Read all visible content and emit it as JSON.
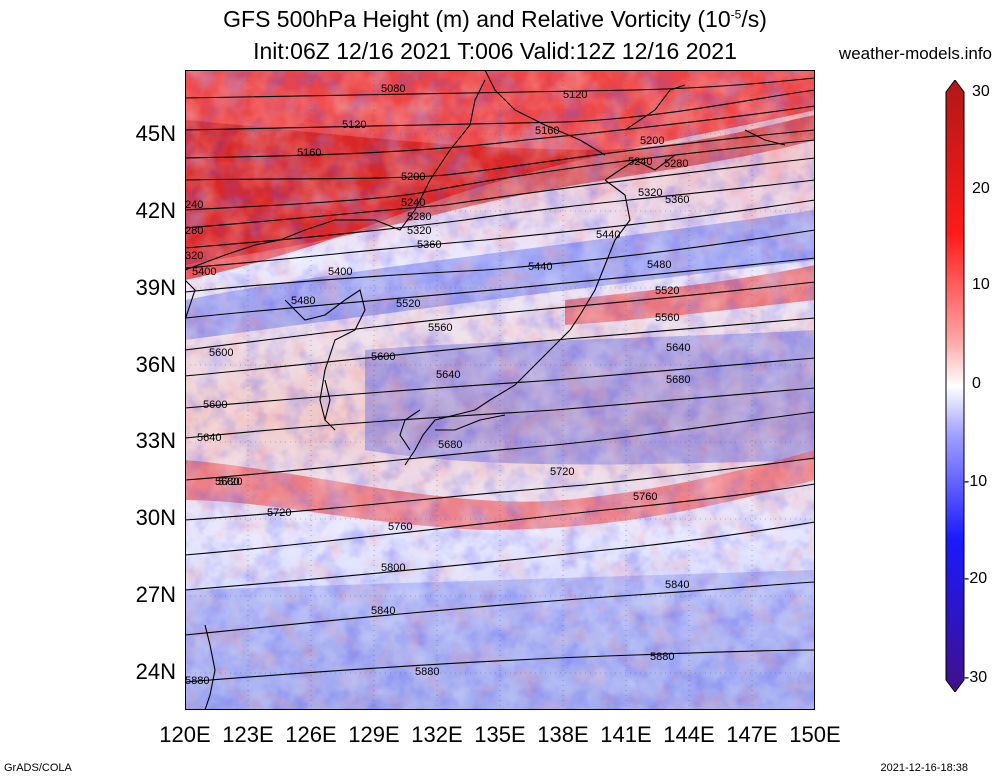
{
  "title": {
    "line1": "GFS 500hPa Height (m) and Relative Vorticity (10",
    "line1_sup": "-5",
    "line1_end": "/s)",
    "line2": "Init:06Z 12/16 2021 T:006 Valid:12Z 12/16 2021"
  },
  "site_label": "weather-models.info",
  "credits": {
    "left": "GrADS/COLA",
    "right": "2021-12-16-18:38"
  },
  "lat_labels": [
    "45N",
    "42N",
    "39N",
    "36N",
    "33N",
    "30N",
    "27N",
    "24N"
  ],
  "lon_labels": [
    "120E",
    "123E",
    "126E",
    "129E",
    "132E",
    "135E",
    "138E",
    "141E",
    "144E",
    "147E",
    "150E"
  ],
  "colorbar": {
    "labels": [
      "30",
      "20",
      "10",
      "0",
      "-10",
      "-20",
      "-30"
    ],
    "min": -30,
    "max": 30,
    "colors": {
      "high": "#b01818",
      "mid_high": "#ff2020",
      "zero": "#ffffff",
      "mid_low": "#2020ff",
      "low": "#40108a"
    }
  },
  "contour_labels": [
    "5080",
    "5120",
    "5120",
    "5160",
    "5160",
    "5200",
    "5200",
    "5240",
    "5240",
    "5280",
    "5280",
    "5320",
    "5320",
    "5360",
    "5360",
    "5400",
    "5400",
    "5440",
    "5440",
    "5480",
    "5480",
    "5520",
    "5520",
    "5560",
    "5560",
    "5600",
    "5600",
    "5640",
    "5640",
    "5680",
    "5680",
    "5720",
    "5720",
    "5760",
    "5760",
    "5800",
    "5840",
    "5840",
    "5880",
    "5880",
    "240",
    "280",
    "320",
    "5600",
    "5640",
    "5680",
    "5720",
    "5880"
  ]
}
